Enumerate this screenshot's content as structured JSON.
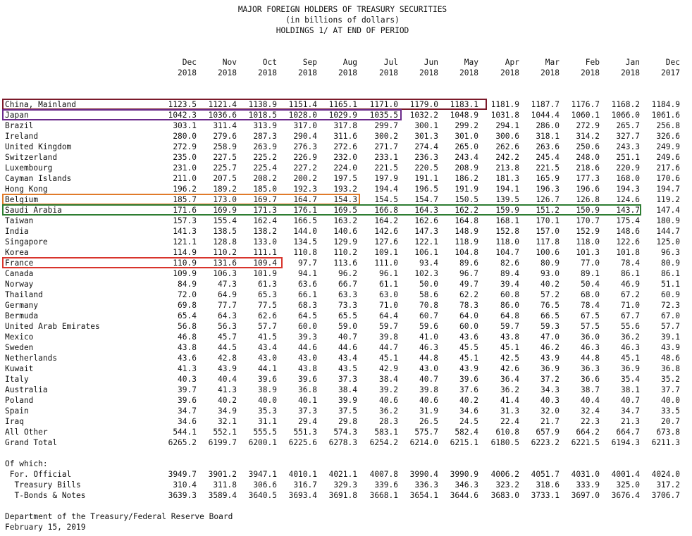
{
  "title": {
    "line1": "MAJOR FOREIGN HOLDERS OF TREASURY SECURITIES",
    "line2": "(in billions of dollars)",
    "line3": "HOLDINGS 1/ AT END OF PERIOD"
  },
  "columns": [
    {
      "month": "Dec",
      "year": "2018"
    },
    {
      "month": "Nov",
      "year": "2018"
    },
    {
      "month": "Oct",
      "year": "2018"
    },
    {
      "month": "Sep",
      "year": "2018"
    },
    {
      "month": "Aug",
      "year": "2018"
    },
    {
      "month": "Jul",
      "year": "2018"
    },
    {
      "month": "Jun",
      "year": "2018"
    },
    {
      "month": "May",
      "year": "2018"
    },
    {
      "month": "Apr",
      "year": "2018"
    },
    {
      "month": "Mar",
      "year": "2018"
    },
    {
      "month": "Feb",
      "year": "2018"
    },
    {
      "month": "Jan",
      "year": "2018"
    },
    {
      "month": "Dec",
      "year": "2017"
    }
  ],
  "rows": [
    {
      "name": "China, Mainland",
      "values": [
        "1123.5",
        "1121.4",
        "1138.9",
        "1151.4",
        "1165.1",
        "1171.0",
        "1179.0",
        "1183.1",
        "1181.9",
        "1187.7",
        "1176.7",
        "1168.2",
        "1184.9"
      ]
    },
    {
      "name": "Japan",
      "values": [
        "1042.3",
        "1036.6",
        "1018.5",
        "1028.0",
        "1029.9",
        "1035.5",
        "1032.2",
        "1048.9",
        "1031.8",
        "1044.4",
        "1060.1",
        "1066.0",
        "1061.6"
      ]
    },
    {
      "name": "Brazil",
      "values": [
        "303.1",
        "311.4",
        "313.9",
        "317.0",
        "317.8",
        "299.7",
        "300.1",
        "299.2",
        "294.1",
        "286.0",
        "272.9",
        "265.7",
        "256.8"
      ]
    },
    {
      "name": "Ireland",
      "values": [
        "280.0",
        "279.6",
        "287.3",
        "290.4",
        "311.6",
        "300.2",
        "301.3",
        "301.0",
        "300.6",
        "318.1",
        "314.2",
        "327.7",
        "326.6"
      ]
    },
    {
      "name": "United Kingdom",
      "values": [
        "272.9",
        "258.9",
        "263.9",
        "276.3",
        "272.6",
        "271.7",
        "274.4",
        "265.0",
        "262.6",
        "263.6",
        "250.6",
        "243.3",
        "249.9"
      ]
    },
    {
      "name": "Switzerland",
      "values": [
        "235.0",
        "227.5",
        "225.2",
        "226.9",
        "232.0",
        "233.1",
        "236.3",
        "243.4",
        "242.2",
        "245.4",
        "248.0",
        "251.1",
        "249.6"
      ]
    },
    {
      "name": "Luxembourg",
      "values": [
        "231.0",
        "225.7",
        "225.4",
        "227.2",
        "224.0",
        "221.5",
        "220.5",
        "208.9",
        "213.8",
        "221.5",
        "218.6",
        "220.9",
        "217.6"
      ]
    },
    {
      "name": "Cayman Islands",
      "values": [
        "211.0",
        "207.5",
        "208.2",
        "200.2",
        "197.5",
        "197.9",
        "191.1",
        "186.2",
        "181.3",
        "165.9",
        "177.3",
        "168.0",
        "170.6"
      ]
    },
    {
      "name": "Hong Kong",
      "values": [
        "196.2",
        "189.2",
        "185.0",
        "192.3",
        "193.2",
        "194.4",
        "196.5",
        "191.9",
        "194.1",
        "196.3",
        "196.6",
        "194.3",
        "194.7"
      ]
    },
    {
      "name": "Belgium",
      "values": [
        "185.7",
        "173.0",
        "169.7",
        "164.7",
        "154.3",
        "154.5",
        "154.7",
        "150.5",
        "139.5",
        "126.7",
        "126.8",
        "124.6",
        "119.2"
      ]
    },
    {
      "name": "Saudi Arabia",
      "values": [
        "171.6",
        "169.9",
        "171.3",
        "176.1",
        "169.5",
        "166.8",
        "164.3",
        "162.2",
        "159.9",
        "151.2",
        "150.9",
        "143.7",
        "147.4"
      ]
    },
    {
      "name": "Taiwan",
      "values": [
        "157.3",
        "155.4",
        "162.4",
        "166.5",
        "163.2",
        "164.2",
        "162.6",
        "164.8",
        "168.1",
        "170.1",
        "170.7",
        "175.4",
        "180.9"
      ]
    },
    {
      "name": "India",
      "values": [
        "141.3",
        "138.5",
        "138.2",
        "144.0",
        "140.6",
        "142.6",
        "147.3",
        "148.9",
        "152.8",
        "157.0",
        "152.9",
        "148.6",
        "144.7"
      ]
    },
    {
      "name": "Singapore",
      "values": [
        "121.1",
        "128.8",
        "133.0",
        "134.5",
        "129.9",
        "127.6",
        "122.1",
        "118.9",
        "118.0",
        "117.8",
        "118.0",
        "122.6",
        "125.0"
      ]
    },
    {
      "name": "Korea",
      "values": [
        "114.9",
        "110.2",
        "111.1",
        "110.8",
        "110.2",
        "109.1",
        "106.1",
        "104.8",
        "104.7",
        "100.6",
        "101.3",
        "101.8",
        "96.3"
      ]
    },
    {
      "name": "France",
      "values": [
        "110.9",
        "131.6",
        "109.4",
        "97.7",
        "113.6",
        "111.0",
        "93.4",
        "89.6",
        "82.6",
        "80.9",
        "77.0",
        "78.4",
        "80.9"
      ]
    },
    {
      "name": "Canada",
      "values": [
        "109.9",
        "106.3",
        "101.9",
        "94.1",
        "96.2",
        "96.1",
        "102.3",
        "96.7",
        "89.4",
        "93.0",
        "89.1",
        "86.1",
        "86.1"
      ]
    },
    {
      "name": "Norway",
      "values": [
        "84.9",
        "47.3",
        "61.3",
        "63.6",
        "66.7",
        "61.1",
        "50.0",
        "49.7",
        "39.4",
        "40.2",
        "50.4",
        "46.9",
        "51.1"
      ]
    },
    {
      "name": "Thailand",
      "values": [
        "72.0",
        "64.9",
        "65.3",
        "66.1",
        "63.3",
        "63.0",
        "58.6",
        "62.2",
        "60.8",
        "57.2",
        "68.0",
        "67.2",
        "60.9"
      ]
    },
    {
      "name": "Germany",
      "values": [
        "69.8",
        "77.7",
        "77.5",
        "68.3",
        "73.3",
        "71.0",
        "70.8",
        "78.3",
        "86.0",
        "76.5",
        "78.4",
        "71.0",
        "72.3"
      ]
    },
    {
      "name": "Bermuda",
      "values": [
        "65.4",
        "64.3",
        "62.6",
        "64.5",
        "65.5",
        "64.4",
        "60.7",
        "64.0",
        "64.8",
        "66.5",
        "67.5",
        "67.7",
        "67.0"
      ]
    },
    {
      "name": "United Arab Emirates",
      "values": [
        "56.8",
        "56.3",
        "57.7",
        "60.0",
        "59.0",
        "59.7",
        "59.6",
        "60.0",
        "59.7",
        "59.3",
        "57.5",
        "55.6",
        "57.7"
      ]
    },
    {
      "name": "Mexico",
      "values": [
        "46.8",
        "45.7",
        "41.5",
        "39.3",
        "40.7",
        "39.8",
        "41.0",
        "43.6",
        "43.8",
        "47.0",
        "36.0",
        "36.2",
        "39.1"
      ]
    },
    {
      "name": "Sweden",
      "values": [
        "43.8",
        "44.5",
        "43.4",
        "44.6",
        "44.6",
        "44.7",
        "46.3",
        "45.5",
        "45.1",
        "46.2",
        "46.3",
        "46.3",
        "43.9"
      ]
    },
    {
      "name": "Netherlands",
      "values": [
        "43.6",
        "42.8",
        "43.0",
        "43.0",
        "43.4",
        "45.1",
        "44.8",
        "45.1",
        "42.5",
        "43.9",
        "44.8",
        "45.1",
        "48.6"
      ]
    },
    {
      "name": "Kuwait",
      "values": [
        "41.3",
        "43.9",
        "44.1",
        "43.8",
        "43.5",
        "42.9",
        "43.0",
        "43.9",
        "42.6",
        "36.9",
        "36.3",
        "36.9",
        "36.8"
      ]
    },
    {
      "name": "Italy",
      "values": [
        "40.3",
        "40.4",
        "39.6",
        "39.6",
        "37.3",
        "38.4",
        "40.7",
        "39.6",
        "36.4",
        "37.2",
        "36.6",
        "35.4",
        "35.2"
      ]
    },
    {
      "name": "Australia",
      "values": [
        "39.7",
        "41.3",
        "38.9",
        "36.8",
        "38.4",
        "39.2",
        "39.8",
        "37.6",
        "36.2",
        "34.3",
        "38.7",
        "38.1",
        "37.7"
      ]
    },
    {
      "name": "Poland",
      "values": [
        "39.6",
        "40.2",
        "40.0",
        "40.1",
        "39.9",
        "40.6",
        "40.6",
        "40.2",
        "41.4",
        "40.3",
        "40.4",
        "40.7",
        "40.0"
      ]
    },
    {
      "name": "Spain",
      "values": [
        "34.7",
        "34.9",
        "35.3",
        "37.3",
        "37.5",
        "36.2",
        "31.9",
        "34.6",
        "31.3",
        "32.0",
        "32.4",
        "34.7",
        "33.5"
      ]
    },
    {
      "name": "Iraq",
      "values": [
        "34.6",
        "32.1",
        "31.1",
        "29.4",
        "29.8",
        "28.3",
        "26.5",
        "24.5",
        "22.4",
        "21.7",
        "22.3",
        "21.3",
        "20.7"
      ]
    },
    {
      "name": "All Other",
      "values": [
        "544.1",
        "552.1",
        "555.5",
        "551.3",
        "574.3",
        "583.1",
        "575.7",
        "582.4",
        "610.8",
        "657.9",
        "664.2",
        "664.7",
        "673.8"
      ]
    },
    {
      "name": "Grand Total",
      "values": [
        "6265.2",
        "6199.7",
        "6200.1",
        "6225.6",
        "6278.3",
        "6254.2",
        "6214.0",
        "6215.1",
        "6180.5",
        "6223.2",
        "6221.5",
        "6194.3",
        "6211.3"
      ]
    }
  ],
  "of_which": {
    "label": "Of which:",
    "rows": [
      {
        "name": " For. Official",
        "values": [
          "3949.7",
          "3901.2",
          "3947.1",
          "4010.1",
          "4021.1",
          "4007.8",
          "3990.4",
          "3990.9",
          "4006.2",
          "4051.7",
          "4031.0",
          "4001.4",
          "4024.0"
        ]
      },
      {
        "name": "  Treasury Bills",
        "values": [
          "310.4",
          "311.8",
          "306.6",
          "316.7",
          "329.3",
          "339.6",
          "336.3",
          "346.3",
          "323.2",
          "318.6",
          "333.9",
          "325.0",
          "317.2"
        ]
      },
      {
        "name": "  T-Bonds & Notes",
        "values": [
          "3639.3",
          "3589.4",
          "3640.5",
          "3693.4",
          "3691.8",
          "3668.1",
          "3654.1",
          "3644.6",
          "3683.0",
          "3733.1",
          "3697.0",
          "3676.4",
          "3706.7"
        ]
      }
    ]
  },
  "footer": {
    "source": "Department of the Treasury/Federal Reserve Board",
    "date": "February 15, 2019"
  },
  "highlights": [
    {
      "label": "china",
      "color": "#7b1a2a"
    },
    {
      "label": "japan",
      "color": "#6a2a8a"
    },
    {
      "label": "belgium",
      "color": "#e07b2a"
    },
    {
      "label": "saudi",
      "color": "#2e7d32"
    },
    {
      "label": "france",
      "color": "#d8342c"
    }
  ]
}
